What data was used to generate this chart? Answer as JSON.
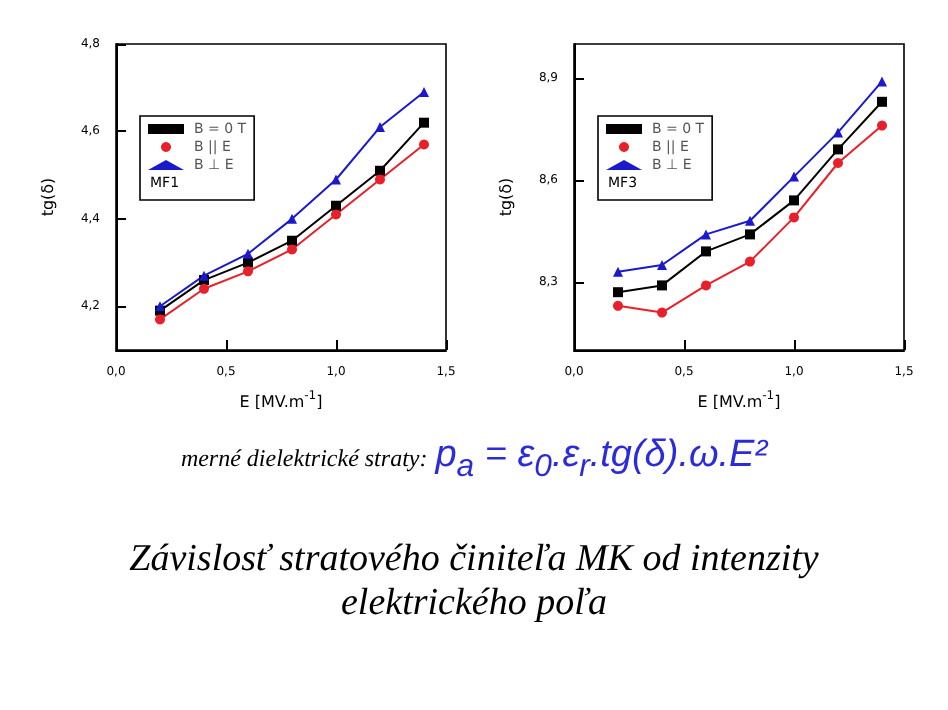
{
  "chart_data": [
    {
      "type": "line",
      "xlabel": "E [MV.m$^{-1}$]",
      "ylabel": "tg(δ)",
      "x": [
        0.2,
        0.4,
        0.6,
        0.8,
        1.0,
        1.2,
        1.4
      ],
      "xlim": [
        0,
        1.5
      ],
      "xticks": [
        {
          "value": 0,
          "label": "0,0"
        },
        {
          "value": 0.5,
          "label": "0,5"
        },
        {
          "value": 1,
          "label": "1,0"
        },
        {
          "value": 1.5,
          "label": "1,5"
        }
      ],
      "ylim": [
        4.1,
        4.8
      ],
      "yticks": [
        {
          "value": 4.2,
          "label": "4,2"
        },
        {
          "value": 4.4,
          "label": "4,4"
        },
        {
          "value": 4.6,
          "label": "4,6"
        },
        {
          "value": 4.8,
          "label": "4,8"
        }
      ],
      "grid": false,
      "legend": "top left",
      "annotations": [
        "MF1"
      ],
      "series": [
        {
          "name": "B = 0 T",
          "color": "#000000",
          "marker": "square",
          "values": [
            4.19,
            4.26,
            4.3,
            4.35,
            4.43,
            4.51,
            4.62
          ]
        },
        {
          "name": "B || E",
          "color": "#e8202a",
          "marker": "circle",
          "values": [
            4.17,
            4.24,
            4.28,
            4.33,
            4.41,
            4.49,
            4.57
          ]
        },
        {
          "name": "B ⊥ E",
          "color": "#1a1acc",
          "marker": "triangle",
          "values": [
            4.2,
            4.27,
            4.32,
            4.4,
            4.49,
            4.61,
            4.69
          ]
        }
      ]
    },
    {
      "type": "line",
      "xlabel": "E [MV.m$^{-1}$]",
      "ylabel": "tg(δ)",
      "x": [
        0.2,
        0.4,
        0.6,
        0.8,
        1.0,
        1.2,
        1.4
      ],
      "xlim": [
        0,
        1.5
      ],
      "xticks": [
        {
          "value": 0,
          "label": "0,0"
        },
        {
          "value": 0.5,
          "label": "0,5"
        },
        {
          "value": 1,
          "label": "1,0"
        },
        {
          "value": 1.5,
          "label": "1,5"
        }
      ],
      "ylim": [
        8.1,
        9.0
      ],
      "yticks": [
        {
          "value": 8.3,
          "label": "8,3"
        },
        {
          "value": 8.6,
          "label": "8,6"
        },
        {
          "value": 8.9,
          "label": "8,9"
        }
      ],
      "grid": false,
      "legend": "top left",
      "annotations": [
        "MF3"
      ],
      "series": [
        {
          "name": "B = 0 T",
          "color": "#000000",
          "marker": "square",
          "values": [
            8.27,
            8.29,
            8.39,
            8.44,
            8.54,
            8.69,
            8.83
          ]
        },
        {
          "name": "B || E",
          "color": "#e8202a",
          "marker": "circle",
          "values": [
            8.23,
            8.21,
            8.29,
            8.36,
            8.49,
            8.65,
            8.76
          ]
        },
        {
          "name": "B ⊥ E",
          "color": "#1a1acc",
          "marker": "triangle",
          "values": [
            8.33,
            8.35,
            8.44,
            8.48,
            8.61,
            8.74,
            8.89
          ]
        }
      ]
    },
    {
      "type": "other",
      "title": "Závislosť stratového činiteľa MK od intenzity elektrického poľa",
      "annotations": [
        "merné dielektrické straty:",
        "p$_{a}$ = ε$_{0}$.ε$_{r}$.tg(δ).ω.E²"
      ]
    }
  ]
}
